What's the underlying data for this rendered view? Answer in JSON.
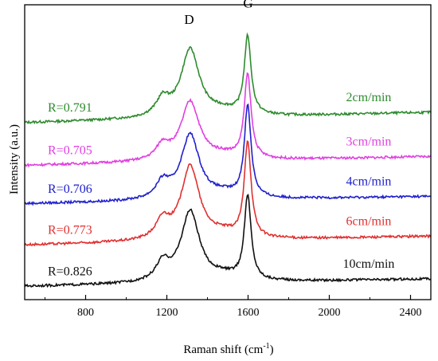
{
  "chart_data": {
    "type": "line",
    "title": "",
    "xlabel": "Raman shift (cm",
    "xlabel_sup": "-1",
    "xlabel_close": ")",
    "ylabel": "Intensity (a.u.)",
    "xlim": [
      500,
      2500
    ],
    "ylim": [
      0,
      10
    ],
    "x_ticks": [
      800,
      1200,
      1600,
      2000,
      2400
    ],
    "x_tick_labels": [
      "800",
      "1200",
      "1600",
      "2000",
      "2400"
    ],
    "peak_labels": [
      {
        "text": "D",
        "x": 1310,
        "y": 9.35
      },
      {
        "text": "G",
        "x": 1600,
        "y": 9.9
      }
    ],
    "series": [
      {
        "label": "2cm/min",
        "r_label": "R=0.791",
        "color": "#2e8b2e",
        "baseline": 6.0,
        "slope": 0.35,
        "d_height": 2.3,
        "g_height": 2.65
      },
      {
        "label": "3cm/min",
        "r_label": "R=0.705",
        "color": "#e040e0",
        "baseline": 4.55,
        "slope": 0.3,
        "d_height": 2.0,
        "g_height": 2.85
      },
      {
        "label": "4cm/min",
        "r_label": "R=0.706",
        "color": "#2020cc",
        "baseline": 3.25,
        "slope": 0.25,
        "d_height": 2.2,
        "g_height": 3.1
      },
      {
        "label": "6cm/min",
        "r_label": "R=0.773",
        "color": "#e03030",
        "baseline": 1.85,
        "slope": 0.3,
        "d_height": 2.5,
        "g_height": 3.25
      },
      {
        "label": "10cm/min",
        "r_label": "R=0.826",
        "color": "#111111",
        "baseline": 0.45,
        "slope": 0.25,
        "d_height": 2.4,
        "g_height": 2.85
      }
    ]
  }
}
